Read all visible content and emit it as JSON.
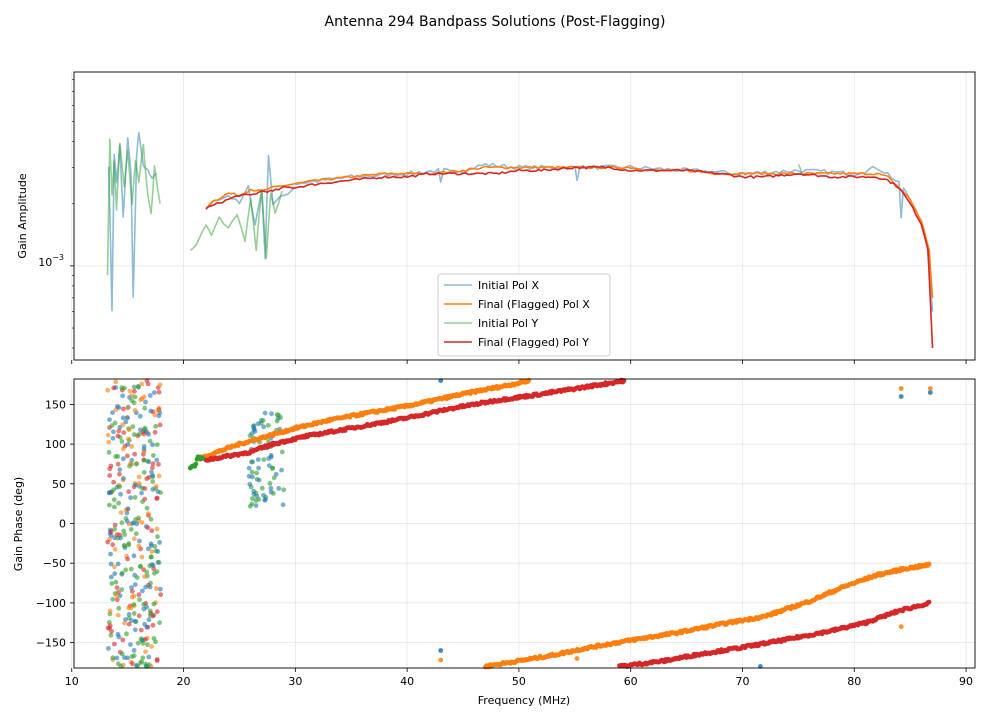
{
  "figure": {
    "title": "Antenna 294 Bandpass Solutions (Post-Flagging)"
  },
  "colors": {
    "pol_x_initial": "#1f77b4",
    "pol_x_final": "#ff7f0e",
    "pol_y_initial": "#2ca02c",
    "pol_y_final": "#d62728",
    "grid": "#e6e6e6"
  },
  "chart_data": [
    {
      "type": "line",
      "name": "amplitude",
      "ylabel": "Gain Amplitude",
      "yscale": "log",
      "ylim": [
        0.00035,
        0.0087
      ],
      "xlim": [
        10.2,
        90.8
      ],
      "ytick_label": {
        "base": "10",
        "exp": "−3"
      },
      "ytick_value": 0.001,
      "legend_location": "lower-center",
      "legend": [
        "Initial Pol X",
        "Final (Flagged) Pol X",
        "Initial Pol Y",
        "Final (Flagged) Pol Y"
      ],
      "series": [
        {
          "name": "Initial Pol X",
          "alpha": 0.5,
          "segments": [
            [
              [
                13.3,
                0.0031
              ],
              [
                13.5,
                0.0011
              ],
              [
                13.6,
                0.0006
              ],
              [
                13.8,
                0.0035
              ],
              [
                14.0,
                0.0025
              ],
              [
                14.3,
                0.0038
              ],
              [
                14.6,
                0.0017
              ],
              [
                15.0,
                0.0042
              ],
              [
                15.3,
                0.0028
              ],
              [
                15.5,
                0.0007
              ],
              [
                15.8,
                0.0033
              ],
              [
                16.0,
                0.0045
              ],
              [
                16.4,
                0.003
              ],
              [
                16.8,
                0.0029
              ],
              [
                17.2,
                0.0026
              ],
              [
                17.6,
                0.0028
              ]
            ],
            [
              [
                22.0,
                0.0019
              ],
              [
                23.0,
                0.0021
              ],
              [
                24.0,
                0.0022
              ],
              [
                25.0,
                0.002
              ],
              [
                25.8,
                0.0024
              ],
              [
                26.4,
                0.0016
              ],
              [
                27.0,
                0.0023
              ],
              [
                27.3,
                0.0011
              ],
              [
                27.6,
                0.0035
              ],
              [
                28.0,
                0.002
              ],
              [
                29.0,
                0.0022
              ],
              [
                30.0,
                0.0024
              ]
            ],
            [
              [
                30.0,
                0.0025
              ],
              [
                35.0,
                0.0027
              ],
              [
                40.0,
                0.0028
              ],
              [
                42.8,
                0.0029
              ],
              [
                43.0,
                0.0025
              ],
              [
                43.3,
                0.0029
              ],
              [
                45.0,
                0.0029
              ],
              [
                47.0,
                0.0031
              ],
              [
                50.0,
                0.003
              ],
              [
                55.0,
                0.003
              ],
              [
                55.2,
                0.0026
              ],
              [
                55.4,
                0.003
              ],
              [
                60.0,
                0.003
              ],
              [
                65.0,
                0.0029
              ],
              [
                70.0,
                0.0028
              ],
              [
                75.0,
                0.0029
              ],
              [
                80.0,
                0.0028
              ],
              [
                82.0,
                0.003
              ],
              [
                83.0,
                0.0028
              ],
              [
                84.0,
                0.0025
              ],
              [
                84.2,
                0.0017
              ],
              [
                84.4,
                0.0024
              ],
              [
                85.5,
                0.0019
              ],
              [
                86.5,
                0.0013
              ],
              [
                87.0,
                0.0006
              ]
            ]
          ]
        },
        {
          "name": "Final (Flagged) Pol X",
          "alpha": 1,
          "segments": [
            [
              [
                22.0,
                0.0019
              ],
              [
                22.5,
                0.00205
              ],
              [
                23.0,
                0.0021
              ],
              [
                24.0,
                0.00225
              ],
              [
                25.0,
                0.0022
              ],
              [
                26.0,
                0.00235
              ],
              [
                27.0,
                0.0023
              ],
              [
                28.0,
                0.0024
              ],
              [
                29.0,
                0.00245
              ],
              [
                30.0,
                0.0025
              ],
              [
                32.0,
                0.0026
              ],
              [
                35.0,
                0.0027
              ],
              [
                38.0,
                0.0028
              ],
              [
                40.0,
                0.0028
              ],
              [
                42.0,
                0.0028
              ],
              [
                45.0,
                0.0029
              ],
              [
                47.0,
                0.003
              ],
              [
                50.0,
                0.003
              ],
              [
                52.0,
                0.003
              ],
              [
                55.0,
                0.003
              ],
              [
                57.0,
                0.003
              ],
              [
                60.0,
                0.003
              ],
              [
                62.0,
                0.0029
              ],
              [
                65.0,
                0.0029
              ],
              [
                68.0,
                0.0028
              ],
              [
                70.0,
                0.0028
              ],
              [
                72.0,
                0.0028
              ],
              [
                75.0,
                0.0028
              ],
              [
                78.0,
                0.0028
              ],
              [
                80.0,
                0.0028
              ],
              [
                82.0,
                0.0028
              ],
              [
                83.0,
                0.0027
              ],
              [
                84.0,
                0.0024
              ],
              [
                85.0,
                0.0021
              ],
              [
                86.0,
                0.00165
              ],
              [
                86.7,
                0.0012
              ],
              [
                87.0,
                0.0007
              ]
            ]
          ]
        },
        {
          "name": "Initial Pol Y",
          "alpha": 0.5,
          "segments": [
            [
              [
                13.2,
                0.0009
              ],
              [
                13.4,
                0.0041
              ],
              [
                13.6,
                0.0022
              ],
              [
                13.8,
                0.0032
              ],
              [
                14.0,
                0.0019
              ],
              [
                14.3,
                0.004
              ],
              [
                14.7,
                0.0024
              ],
              [
                15.0,
                0.0036
              ],
              [
                15.4,
                0.002
              ],
              [
                15.7,
                0.0033
              ],
              [
                16.0,
                0.0026
              ],
              [
                16.4,
                0.0039
              ],
              [
                16.8,
                0.0022
              ],
              [
                17.1,
                0.0018
              ],
              [
                17.4,
                0.003
              ],
              [
                17.9,
                0.002
              ]
            ],
            [
              [
                20.6,
                0.0012
              ],
              [
                21.2,
                0.0013
              ],
              [
                22.0,
                0.0016
              ],
              [
                22.5,
                0.0014
              ],
              [
                23.2,
                0.0017
              ],
              [
                24.0,
                0.0015
              ],
              [
                24.8,
                0.0018
              ],
              [
                25.5,
                0.0013
              ],
              [
                26.0,
                0.0021
              ],
              [
                26.5,
                0.0012
              ],
              [
                27.0,
                0.0024
              ],
              [
                27.4,
                0.0011
              ],
              [
                27.8,
                0.0022
              ],
              [
                28.2,
                0.0018
              ],
              [
                28.8,
                0.0023
              ]
            ],
            [
              [
                75.0,
                0.0031
              ],
              [
                75.3,
                0.0028
              ]
            ]
          ]
        },
        {
          "name": "Final (Flagged) Pol Y",
          "alpha": 1,
          "segments": [
            [
              [
                22.0,
                0.0019
              ],
              [
                23.0,
                0.002
              ],
              [
                24.0,
                0.0021
              ],
              [
                25.0,
                0.0022
              ],
              [
                26.0,
                0.0022
              ],
              [
                27.0,
                0.0023
              ],
              [
                28.0,
                0.0023
              ],
              [
                29.0,
                0.0024
              ],
              [
                30.0,
                0.0024
              ],
              [
                32.0,
                0.0025
              ],
              [
                35.0,
                0.0026
              ],
              [
                38.0,
                0.0027
              ],
              [
                40.0,
                0.0027
              ],
              [
                42.0,
                0.0028
              ],
              [
                45.0,
                0.0028
              ],
              [
                48.0,
                0.0028
              ],
              [
                50.0,
                0.0029
              ],
              [
                52.0,
                0.0029
              ],
              [
                55.0,
                0.003
              ],
              [
                58.0,
                0.003
              ],
              [
                60.0,
                0.0029
              ],
              [
                62.0,
                0.0029
              ],
              [
                65.0,
                0.0029
              ],
              [
                68.0,
                0.0028
              ],
              [
                70.0,
                0.0027
              ],
              [
                72.0,
                0.0027
              ],
              [
                75.0,
                0.0028
              ],
              [
                78.0,
                0.0027
              ],
              [
                80.0,
                0.0027
              ],
              [
                82.0,
                0.0027
              ],
              [
                83.0,
                0.0026
              ],
              [
                84.0,
                0.0024
              ],
              [
                85.0,
                0.002
              ],
              [
                86.0,
                0.0016
              ],
              [
                86.6,
                0.0012
              ],
              [
                87.0,
                0.0004
              ]
            ]
          ]
        }
      ]
    },
    {
      "type": "scatter",
      "name": "phase",
      "ylabel": "Gain Phase (deg)",
      "xlabel": "Frequency (MHz)",
      "ylim": [
        -182,
        182
      ],
      "xlim": [
        10.2,
        90.8
      ],
      "yticks": [
        -150,
        -100,
        -50,
        0,
        50,
        100,
        150
      ],
      "xticks": [
        10,
        20,
        30,
        40,
        50,
        60,
        70,
        80,
        90
      ],
      "noise_band": {
        "x": [
          13.2,
          18.0
        ],
        "y": [
          -180,
          180
        ]
      },
      "series": [
        {
          "name": "Final (Flagged) Pol X",
          "segments": [
            [
              [
                21.5,
                82
              ],
              [
                23,
                90
              ],
              [
                25,
                100
              ],
              [
                27,
                108
              ],
              [
                30,
                120
              ],
              [
                33,
                130
              ],
              [
                36,
                138
              ],
              [
                40,
                148
              ],
              [
                43,
                157
              ],
              [
                46,
                166
              ],
              [
                49,
                174
              ],
              [
                51,
                180
              ]
            ],
            [
              [
                47,
                -180
              ],
              [
                50,
                -173
              ],
              [
                53,
                -166
              ],
              [
                56,
                -157
              ],
              [
                60,
                -147
              ],
              [
                64,
                -138
              ],
              [
                68,
                -127
              ],
              [
                72,
                -117
              ],
              [
                76,
                -98
              ],
              [
                79,
                -80
              ],
              [
                82,
                -65
              ],
              [
                84.5,
                -57
              ],
              [
                86.8,
                -52
              ]
            ]
          ]
        },
        {
          "name": "Final (Flagged) Pol Y",
          "segments": [
            [
              [
                22,
                80
              ],
              [
                26,
                90
              ],
              [
                28,
                100
              ],
              [
                31,
                110
              ],
              [
                35,
                120
              ],
              [
                40,
                133
              ],
              [
                44,
                145
              ],
              [
                48,
                155
              ],
              [
                52,
                163
              ],
              [
                56,
                172
              ],
              [
                59.5,
                180
              ]
            ],
            [
              [
                59,
                -180
              ],
              [
                63,
                -173
              ],
              [
                66,
                -165
              ],
              [
                70,
                -156
              ],
              [
                74,
                -146
              ],
              [
                78,
                -135
              ],
              [
                81,
                -125
              ],
              [
                84,
                -110
              ],
              [
                86.8,
                -100
              ]
            ]
          ]
        },
        {
          "name": "Initial Pol Y",
          "segments": [
            [
              [
                20.6,
                70
              ],
              [
                21,
                72
              ],
              [
                21.3,
                84
              ],
              [
                21.8,
                80
              ]
            ]
          ]
        }
      ],
      "cluster": {
        "x": [
          25.8,
          29.0
        ],
        "y": [
          20,
          140
        ]
      },
      "outliers": [
        [
          43,
          -160
        ],
        [
          43,
          -172
        ],
        [
          43,
          180
        ],
        [
          84.2,
          170
        ],
        [
          84.2,
          160
        ],
        [
          84.2,
          -130
        ],
        [
          86.8,
          165
        ],
        [
          86.8,
          170
        ],
        [
          71.6,
          -180
        ],
        [
          55.2,
          -170
        ]
      ]
    }
  ]
}
